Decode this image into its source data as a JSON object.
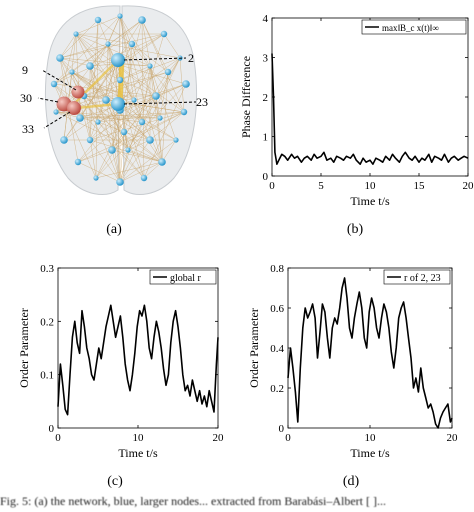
{
  "figure": {
    "panel_a": {
      "caption": "(a)",
      "node_labels": [
        "9",
        "2",
        "30",
        "23",
        "33"
      ]
    },
    "panel_b": {
      "caption": "(b)"
    },
    "panel_c": {
      "caption": "(c)"
    },
    "panel_d": {
      "caption": "(d)"
    },
    "footer_text": "Fig. 5: (a) the network, blue, larger nodes... extracted from Barabási–Albert [ ]..."
  },
  "chart_data": [
    {
      "id": "b",
      "type": "line",
      "xlabel": "Time t/s",
      "ylabel": "Phase Difference",
      "xlim": [
        0,
        20
      ],
      "ylim": [
        0,
        4
      ],
      "xticks": [
        0,
        5,
        10,
        15,
        20
      ],
      "yticks": [
        0,
        1,
        2,
        3,
        4
      ],
      "legend": "max‖B_c x(t)‖∞",
      "legend_position": "top-right",
      "series": [
        {
          "name": "max‖B_c x(t)‖∞",
          "x": [
            0,
            0.15,
            0.3,
            0.5,
            0.8,
            1.0,
            1.3,
            1.6,
            2.0,
            2.3,
            2.6,
            3.0,
            3.3,
            3.6,
            4.0,
            4.3,
            4.6,
            5.0,
            5.3,
            5.6,
            6.0,
            6.3,
            6.6,
            7.0,
            7.3,
            7.6,
            8.0,
            8.3,
            8.6,
            9.0,
            9.3,
            9.6,
            10.0,
            10.3,
            10.6,
            11.0,
            11.3,
            11.6,
            12.0,
            12.3,
            12.6,
            13.0,
            13.3,
            13.6,
            14.0,
            14.3,
            14.6,
            15.0,
            15.3,
            15.6,
            16.0,
            16.3,
            16.6,
            17.0,
            17.3,
            17.6,
            18.0,
            18.3,
            18.6,
            19.0,
            19.3,
            19.6,
            20.0
          ],
          "y": [
            3.1,
            2.0,
            0.6,
            0.3,
            0.45,
            0.55,
            0.5,
            0.4,
            0.55,
            0.45,
            0.5,
            0.35,
            0.45,
            0.5,
            0.4,
            0.55,
            0.45,
            0.5,
            0.6,
            0.4,
            0.45,
            0.35,
            0.5,
            0.45,
            0.4,
            0.5,
            0.45,
            0.55,
            0.4,
            0.3,
            0.45,
            0.35,
            0.4,
            0.3,
            0.45,
            0.4,
            0.35,
            0.5,
            0.4,
            0.55,
            0.45,
            0.35,
            0.5,
            0.6,
            0.45,
            0.4,
            0.5,
            0.35,
            0.45,
            0.4,
            0.55,
            0.35,
            0.5,
            0.45,
            0.4,
            0.55,
            0.35,
            0.45,
            0.5,
            0.4,
            0.45,
            0.5,
            0.45
          ]
        }
      ]
    },
    {
      "id": "c",
      "type": "line",
      "xlabel": "Time t/s",
      "ylabel": "Order Parameter",
      "xlim": [
        0,
        20
      ],
      "ylim": [
        0,
        0.3
      ],
      "xticks": [
        0,
        10,
        20
      ],
      "yticks": [
        0,
        0.1,
        0.2,
        0.3
      ],
      "legend": "global r",
      "legend_position": "top-right",
      "series": [
        {
          "name": "global r",
          "x": [
            0,
            0.3,
            0.6,
            0.9,
            1.2,
            1.5,
            1.8,
            2.1,
            2.4,
            2.7,
            3.0,
            3.3,
            3.6,
            3.9,
            4.2,
            4.5,
            4.8,
            5.1,
            5.4,
            5.7,
            6.0,
            6.3,
            6.6,
            6.9,
            7.2,
            7.5,
            7.8,
            8.1,
            8.4,
            8.7,
            9.0,
            9.3,
            9.6,
            9.9,
            10.2,
            10.5,
            10.8,
            11.1,
            11.4,
            11.7,
            12.0,
            12.3,
            12.6,
            12.9,
            13.2,
            13.5,
            13.8,
            14.1,
            14.4,
            14.7,
            15.0,
            15.3,
            15.6,
            15.9,
            16.2,
            16.5,
            16.8,
            17.1,
            17.4,
            17.7,
            18.0,
            18.3,
            18.6,
            18.9,
            19.2,
            19.5,
            19.8,
            20.0
          ],
          "y": [
            0.04,
            0.12,
            0.08,
            0.035,
            0.025,
            0.1,
            0.17,
            0.2,
            0.16,
            0.14,
            0.22,
            0.19,
            0.15,
            0.13,
            0.1,
            0.09,
            0.12,
            0.15,
            0.13,
            0.16,
            0.19,
            0.21,
            0.23,
            0.2,
            0.17,
            0.19,
            0.21,
            0.17,
            0.12,
            0.09,
            0.07,
            0.1,
            0.14,
            0.19,
            0.22,
            0.21,
            0.23,
            0.2,
            0.15,
            0.13,
            0.17,
            0.2,
            0.18,
            0.15,
            0.11,
            0.08,
            0.1,
            0.16,
            0.2,
            0.22,
            0.19,
            0.15,
            0.1,
            0.07,
            0.08,
            0.06,
            0.09,
            0.07,
            0.05,
            0.07,
            0.045,
            0.06,
            0.04,
            0.07,
            0.05,
            0.03,
            0.12,
            0.17
          ]
        }
      ]
    },
    {
      "id": "d",
      "type": "line",
      "xlabel": "Time t/s",
      "ylabel": "Order Parameter",
      "xlim": [
        0,
        20
      ],
      "ylim": [
        0,
        0.8
      ],
      "xticks": [
        0,
        10,
        20
      ],
      "yticks": [
        0,
        0.2,
        0.4,
        0.6,
        0.8
      ],
      "legend": "r of 2, 23",
      "legend_position": "top-right",
      "series": [
        {
          "name": "r of 2, 23",
          "x": [
            0,
            0.3,
            0.6,
            0.9,
            1.2,
            1.5,
            1.8,
            2.1,
            2.4,
            2.7,
            3.0,
            3.3,
            3.6,
            3.9,
            4.2,
            4.5,
            4.8,
            5.1,
            5.4,
            5.7,
            6.0,
            6.3,
            6.6,
            6.9,
            7.2,
            7.5,
            7.8,
            8.1,
            8.4,
            8.7,
            9.0,
            9.3,
            9.6,
            9.9,
            10.2,
            10.5,
            10.8,
            11.1,
            11.4,
            11.7,
            12.0,
            12.3,
            12.6,
            12.9,
            13.2,
            13.5,
            13.8,
            14.1,
            14.4,
            14.7,
            15.0,
            15.3,
            15.6,
            15.9,
            16.2,
            16.5,
            16.8,
            17.1,
            17.4,
            17.7,
            18.0,
            18.3,
            18.6,
            18.9,
            19.2,
            19.5,
            19.8,
            20.0
          ],
          "y": [
            0.25,
            0.4,
            0.3,
            0.18,
            0.03,
            0.3,
            0.5,
            0.6,
            0.55,
            0.58,
            0.62,
            0.55,
            0.35,
            0.48,
            0.62,
            0.58,
            0.45,
            0.35,
            0.5,
            0.55,
            0.52,
            0.6,
            0.7,
            0.75,
            0.65,
            0.5,
            0.45,
            0.55,
            0.62,
            0.68,
            0.6,
            0.45,
            0.4,
            0.58,
            0.65,
            0.6,
            0.5,
            0.45,
            0.55,
            0.62,
            0.58,
            0.5,
            0.38,
            0.3,
            0.4,
            0.55,
            0.6,
            0.63,
            0.55,
            0.45,
            0.35,
            0.2,
            0.25,
            0.18,
            0.3,
            0.2,
            0.15,
            0.1,
            0.12,
            0.08,
            0.02,
            0.0,
            0.05,
            0.08,
            0.1,
            0.12,
            0.03,
            0.05
          ]
        }
      ]
    }
  ]
}
